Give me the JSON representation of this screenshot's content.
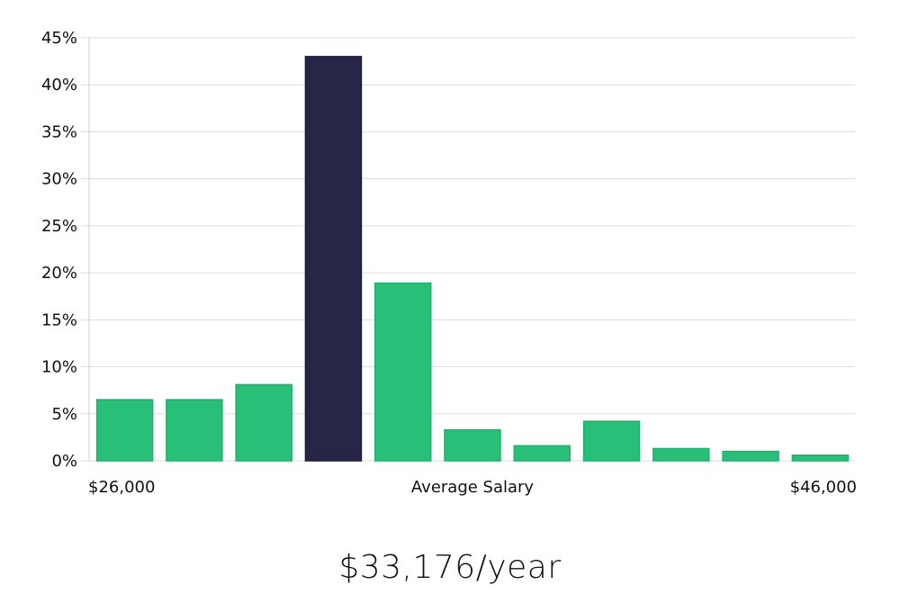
{
  "chart_data": {
    "type": "bar",
    "categories": [
      "1",
      "2",
      "3",
      "4",
      "5",
      "6",
      "7",
      "8",
      "9",
      "10",
      "11"
    ],
    "values": [
      6.5,
      6.5,
      8.1,
      43.0,
      18.9,
      3.3,
      1.6,
      4.2,
      1.3,
      1.0,
      0.6
    ],
    "highlight_index": 3,
    "ylim": [
      0,
      45
    ],
    "y_ticks": [
      0,
      5,
      10,
      15,
      20,
      25,
      30,
      35,
      40,
      45
    ],
    "y_tick_labels": [
      "0%",
      "5%",
      "10%",
      "15%",
      "20%",
      "25%",
      "30%",
      "35%",
      "40%",
      "45%"
    ],
    "x_min_label": "$26,000",
    "x_center_label": "Average Salary",
    "x_max_label": "$46,000",
    "grid": true,
    "colors": {
      "bar": "#2abf78",
      "bar_highlight": "#282646",
      "grid": "#dcdcdc"
    }
  },
  "summary": {
    "salary_text": "$33,176/year"
  }
}
